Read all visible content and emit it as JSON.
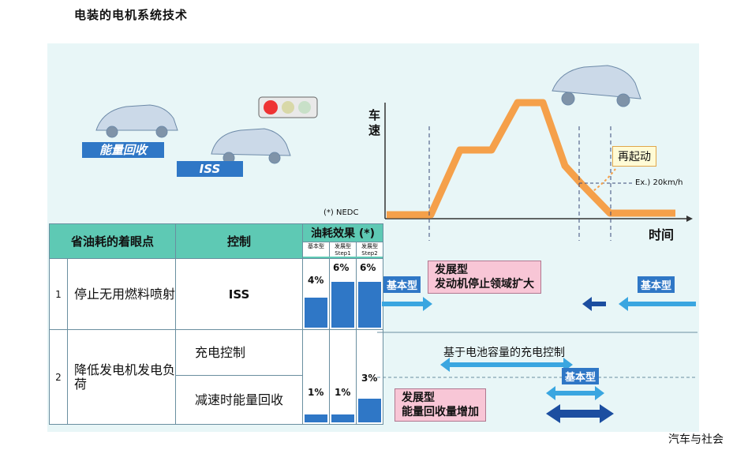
{
  "page_title": "电装的电机系统技术",
  "scenario": {
    "energy_recovery_label": "能量回收",
    "iss_label": "ISS",
    "axis_y": "车速",
    "axis_x": "时间",
    "restart_label": "再起动",
    "speed_note": "Ex.) 20km/h",
    "nedc_note": "(*) NEDC"
  },
  "table": {
    "col_focus": "省油耗的着眼点",
    "col_control": "控制",
    "col_effect": "油耗效果 (*)",
    "sub_basic": "基本型",
    "sub_step1": "发展型 Step1",
    "sub_step2": "发展型 Step2",
    "row1": {
      "num": "1",
      "focus": "停止无用燃料喷射",
      "control": "ISS",
      "pct_basic": "4%",
      "pct_step1": "6%",
      "pct_step2": "6%"
    },
    "row2": {
      "num": "2",
      "focus": "降低发电机发电负荷",
      "control_a": "充电控制",
      "control_b": "减速时能量回收",
      "pct_basic": "1%",
      "pct_step1": "1%",
      "pct_step2": "3%"
    }
  },
  "timeline": {
    "basic_left": "基本型",
    "basic_right": "基本型",
    "dev1_line1": "发展型",
    "dev1_line2": "发动机停止领域扩大",
    "charge_note": "基于电池容量的充电控制",
    "basic_mid": "基本型",
    "dev2_line1": "发展型",
    "dev2_line2": "能量回收量增加"
  },
  "footer": "汽车与社会",
  "colors": {
    "accent_blue": "#2f77c6",
    "orange": "#f5a04a",
    "table_header": "#5ec9b4",
    "pink": "#f8c6d6"
  }
}
